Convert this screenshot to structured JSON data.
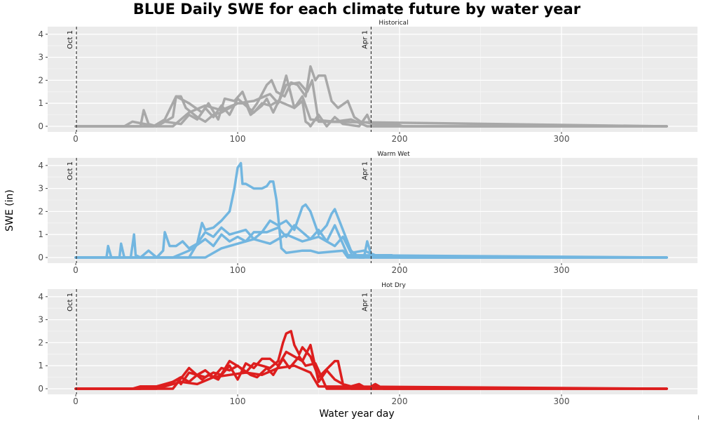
{
  "page": {
    "title": "BLUE Daily SWE for each climate future by water year",
    "xlabel": "Water year day",
    "ylabel": "SWE (in)"
  },
  "chart_data": {
    "type": "line",
    "title": "BLUE Daily SWE for each climate future by water year",
    "xlabel": "Water year day",
    "ylabel": "SWE (in)",
    "xlim": [
      -15,
      380
    ],
    "ylim": [
      -0.3,
      4.3
    ],
    "x_ticks": [
      0,
      100,
      200,
      300
    ],
    "y_ticks": [
      0,
      1,
      2,
      3,
      4
    ],
    "grid": true,
    "facet_layout": "stacked",
    "vlines": [
      {
        "x": 0,
        "label": "Oct 1"
      },
      {
        "x": 182,
        "label": "Apr 1"
      }
    ],
    "panels": [
      {
        "title": "Historical",
        "color": "#A8A8A8",
        "series": [
          {
            "x": [
              0,
              40,
              42,
              45,
              50,
              60,
              62,
              65,
              68,
              75,
              80,
              85,
              90,
              95,
              100,
              105,
              108,
              115,
              118,
              122,
              126,
              130,
              135,
              140,
              142,
              144,
              145,
              150,
              155,
              160,
              165,
              175,
              180,
              183,
              190,
              200,
              365
            ],
            "y": [
              0,
              0,
              0.7,
              0.1,
              0,
              0.4,
              1.3,
              1.3,
              0.8,
              0.4,
              0.2,
              0.5,
              0.6,
              0.8,
              1.0,
              1.0,
              0.5,
              0.9,
              1.2,
              0.6,
              1.2,
              2.2,
              0.8,
              1.1,
              0.2,
              0.1,
              0,
              0.5,
              0,
              0.4,
              0.1,
              0,
              0.5,
              0,
              0,
              0,
              0
            ]
          },
          {
            "x": [
              0,
              48,
              55,
              62,
              70,
              78,
              82,
              88,
              92,
              98,
              103,
              108,
              112,
              118,
              121,
              124,
              129,
              133,
              137,
              142,
              145,
              148,
              150,
              154,
              158,
              162,
              168,
              172,
              176,
              185,
              198,
              202,
              365
            ],
            "y": [
              0,
              0,
              0.3,
              1.3,
              1.0,
              0.6,
              1.0,
              0.3,
              1.2,
              1.1,
              1.5,
              0.6,
              1.0,
              1.8,
              2.0,
              1.5,
              1.3,
              1.9,
              1.8,
              1.3,
              2.6,
              2.0,
              2.2,
              2.2,
              1.1,
              0.8,
              1.1,
              0.4,
              0.2,
              0.1,
              0.1,
              0,
              0
            ]
          },
          {
            "x": [
              0,
              30,
              35,
              50,
              55,
              65,
              70,
              75,
              80,
              85,
              90,
              95,
              100,
              110,
              115,
              120,
              125,
              135,
              140,
              145,
              160,
              170,
              180,
              365
            ],
            "y": [
              0,
              0,
              0.2,
              0,
              0.2,
              0.1,
              0.5,
              0.3,
              0.8,
              0.4,
              0.9,
              0.5,
              1.2,
              0.6,
              1.0,
              0.9,
              1.1,
              0.8,
              1.3,
              0.3,
              0.2,
              0.3,
              0,
              0
            ]
          },
          {
            "x": [
              0,
              60,
              70,
              80,
              90,
              100,
              110,
              120,
              125,
              130,
              138,
              143,
              146,
              150,
              365
            ],
            "y": [
              0,
              0,
              0.6,
              0.9,
              0.7,
              1.0,
              1.1,
              1.4,
              1.0,
              1.8,
              1.9,
              1.5,
              2.0,
              0.2,
              0
            ]
          }
        ]
      },
      {
        "title": "Warm Wet",
        "color": "#72B6E0",
        "series": [
          {
            "x": [
              0,
              19,
              20,
              22,
              24,
              27,
              28,
              30,
              34,
              36,
              37,
              40,
              45,
              50,
              54,
              55,
              58,
              62,
              66,
              70,
              75,
              78,
              80,
              85,
              90,
              95,
              98,
              100,
              102,
              103,
              105,
              110,
              115,
              118,
              120,
              122,
              124,
              127,
              130,
              140,
              145,
              150,
              165,
              168,
              178,
              180,
              183,
              195,
              200,
              365
            ],
            "y": [
              0,
              0,
              0.5,
              0,
              0,
              0,
              0.6,
              0,
              0,
              1.0,
              0.1,
              0,
              0.3,
              0,
              0.3,
              1.1,
              0.5,
              0.5,
              0.7,
              0.4,
              0.6,
              1.5,
              1.2,
              1.3,
              1.6,
              2.0,
              3.0,
              3.9,
              4.1,
              3.2,
              3.2,
              3.0,
              3.0,
              3.1,
              3.3,
              3.3,
              2.5,
              0.4,
              0.2,
              0.3,
              0.3,
              0.2,
              0.3,
              0,
              0,
              0.7,
              0,
              0,
              0,
              0
            ]
          },
          {
            "x": [
              0,
              70,
              75,
              80,
              85,
              90,
              95,
              100,
              105,
              110,
              115,
              120,
              125,
              130,
              135,
              140,
              142,
              145,
              150,
              155,
              158,
              160,
              165,
              170,
              175,
              365
            ],
            "y": [
              0,
              0,
              0.6,
              1.1,
              0.9,
              1.3,
              1.0,
              1.1,
              1.2,
              0.8,
              1.1,
              1.6,
              1.4,
              1.6,
              1.2,
              2.2,
              2.3,
              2.0,
              1.0,
              1.4,
              1.9,
              2.1,
              1.2,
              0.3,
              0,
              0
            ]
          },
          {
            "x": [
              0,
              60,
              70,
              80,
              85,
              90,
              95,
              100,
              105,
              110,
              118,
              125,
              130,
              135,
              140,
              145,
              150,
              155,
              160,
              168,
              365
            ],
            "y": [
              0,
              0,
              0.3,
              0.8,
              0.5,
              1.0,
              0.7,
              0.9,
              0.7,
              1.1,
              1.1,
              1.3,
              0.9,
              1.4,
              1.1,
              0.8,
              1.2,
              0.7,
              1.4,
              0.1,
              0
            ]
          },
          {
            "x": [
              0,
              80,
              90,
              100,
              110,
              120,
              130,
              140,
              150,
              160,
              165,
              170,
              178,
              185,
              195,
              200,
              365
            ],
            "y": [
              0,
              0,
              0.4,
              0.6,
              0.8,
              0.6,
              1.0,
              0.7,
              0.9,
              0.5,
              0.9,
              0.2,
              0.3,
              0.1,
              0.1,
              0,
              0
            ]
          }
        ]
      },
      {
        "title": "Hot Dry",
        "color": "#DD1E1E",
        "series": [
          {
            "x": [
              0,
              35,
              40,
              50,
              55,
              60,
              63,
              65,
              70,
              75,
              80,
              85,
              90,
              95,
              100,
              105,
              110,
              115,
              120,
              125,
              128,
              130,
              133,
              135,
              138,
              140,
              145,
              150,
              160,
              162,
              165,
              170,
              175,
              180,
              185,
              190,
              365
            ],
            "y": [
              0,
              0,
              0.1,
              0.1,
              0.2,
              0.3,
              0.4,
              0.2,
              0.7,
              0.6,
              0.8,
              0.5,
              0.9,
              0.8,
              1.0,
              0.7,
              1.1,
              1.0,
              0.9,
              1.2,
              2.0,
              2.4,
              2.5,
              1.9,
              1.5,
              1.8,
              1.4,
              0.5,
              1.2,
              1.2,
              0.2,
              0.1,
              0.2,
              0,
              0.2,
              0,
              0
            ]
          },
          {
            "x": [
              0,
              50,
              60,
              65,
              70,
              75,
              80,
              85,
              90,
              95,
              100,
              105,
              110,
              115,
              120,
              125,
              130,
              140,
              145,
              150,
              155,
              160,
              170,
              180,
              365
            ],
            "y": [
              0,
              0,
              0.3,
              0.5,
              0.3,
              0.6,
              0.5,
              0.7,
              0.6,
              1.0,
              0.4,
              1.1,
              0.9,
              1.3,
              1.3,
              1.0,
              1.6,
              1.2,
              1.9,
              0.3,
              0.8,
              0.4,
              0,
              0,
              0
            ]
          },
          {
            "x": [
              0,
              60,
              70,
              78,
              82,
              88,
              95,
              102,
              108,
              112,
              118,
              122,
              128,
              132,
              138,
              142,
              148,
              155,
              365
            ],
            "y": [
              0,
              0,
              0.9,
              0.4,
              0.6,
              0.4,
              1.2,
              0.9,
              0.6,
              0.5,
              0.9,
              0.6,
              1.3,
              0.9,
              1.4,
              1.0,
              1.1,
              0,
              0
            ]
          },
          {
            "x": [
              0,
              40,
              45,
              55,
              65,
              75,
              85,
              95,
              105,
              115,
              125,
              135,
              145,
              150,
              365
            ],
            "y": [
              0,
              0,
              0.1,
              0.1,
              0.3,
              0.2,
              0.5,
              0.6,
              0.7,
              0.6,
              0.9,
              1.0,
              0.7,
              0.1,
              0
            ]
          }
        ]
      }
    ]
  }
}
